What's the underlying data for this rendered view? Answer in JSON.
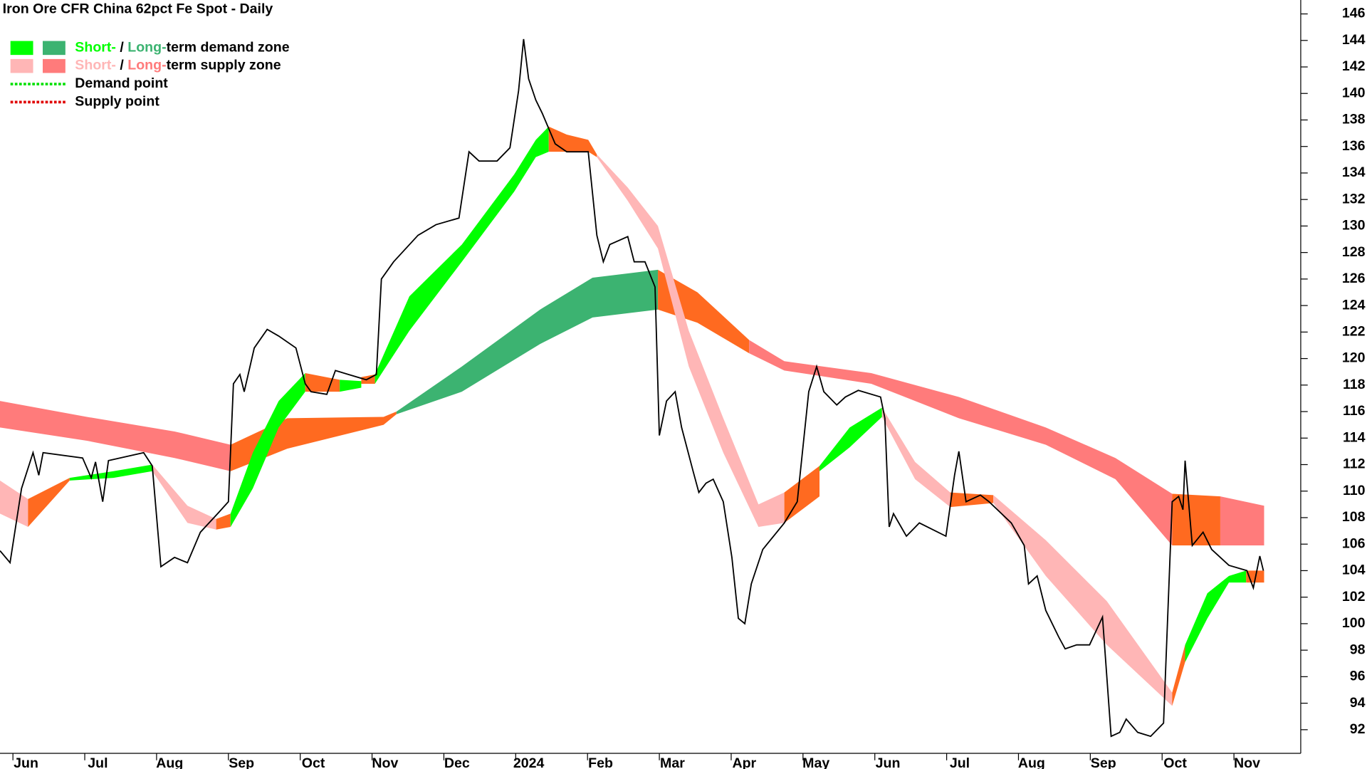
{
  "chart_data": {
    "type": "line",
    "title": "Iron Ore CFR China 62pct Fe Spot - Daily",
    "color": "#000000",
    "xlim": [
      -0.18,
      17.93
    ],
    "ylim": [
      90.22,
      147.05
    ],
    "xticks": [
      {
        "value": 0,
        "label": "Jun"
      },
      {
        "value": 1,
        "label": "Jul"
      },
      {
        "value": 2,
        "label": "Aug"
      },
      {
        "value": 3,
        "label": "Sep"
      },
      {
        "value": 4,
        "label": "Oct"
      },
      {
        "value": 5,
        "label": "Nov"
      },
      {
        "value": 6,
        "label": "Dec"
      },
      {
        "value": 7,
        "label": "2024"
      },
      {
        "value": 8,
        "label": "Feb"
      },
      {
        "value": 9,
        "label": "Mar"
      },
      {
        "value": 10,
        "label": "Apr"
      },
      {
        "value": 11,
        "label": "May"
      },
      {
        "value": 12,
        "label": "Jun"
      },
      {
        "value": 13,
        "label": "Jul"
      },
      {
        "value": 14,
        "label": "Aug"
      },
      {
        "value": 15,
        "label": "Sep"
      },
      {
        "value": 16,
        "label": "Oct"
      },
      {
        "value": 17,
        "label": "Nov"
      }
    ],
    "yticks": [
      92,
      94,
      96,
      98,
      100,
      102,
      104,
      106,
      108,
      110,
      112,
      114,
      116,
      118,
      120,
      122,
      124,
      126,
      128,
      130,
      132,
      134,
      136,
      138,
      140,
      142,
      144,
      146
    ],
    "x": [
      -0.18,
      -0.04,
      0.12,
      0.28,
      0.36,
      0.42,
      0.97,
      1.09,
      1.15,
      1.25,
      1.33,
      1.82,
      1.94,
      2.06,
      2.25,
      2.43,
      2.61,
      2.85,
      3.0,
      3.07,
      3.16,
      3.22,
      3.36,
      3.54,
      3.7,
      3.94,
      4.07,
      4.15,
      4.37,
      4.49,
      4.67,
      4.92,
      5.06,
      5.13,
      5.3,
      5.64,
      5.89,
      6.21,
      6.35,
      6.49,
      6.74,
      6.92,
      7.04,
      7.11,
      7.18,
      7.28,
      7.37,
      7.55,
      7.71,
      8.01,
      8.13,
      8.22,
      8.31,
      8.56,
      8.65,
      8.8,
      8.94,
      9.0,
      9.1,
      9.22,
      9.31,
      9.47,
      9.55,
      9.65,
      9.75,
      9.89,
      10.01,
      10.1,
      10.19,
      10.28,
      10.44,
      10.74,
      10.92,
      11.08,
      11.19,
      11.29,
      11.47,
      11.59,
      11.77,
      12.08,
      12.14,
      12.2,
      12.26,
      12.44,
      12.62,
      12.99,
      13.11,
      13.17,
      13.27,
      13.47,
      13.59,
      13.9,
      14.08,
      14.14,
      14.26,
      14.38,
      14.56,
      14.65,
      14.81,
      14.99,
      15.17,
      15.29,
      15.41,
      15.5,
      15.66,
      15.84,
      16.02,
      16.14,
      16.23,
      16.29,
      16.32,
      16.42,
      16.57,
      16.69,
      16.93,
      17.18,
      17.27,
      17.36,
      17.41
    ],
    "values": [
      105.5,
      104.6,
      110.2,
      112.9,
      111.2,
      112.9,
      112.5,
      111.0,
      112.2,
      109.2,
      112.3,
      112.9,
      111.9,
      104.3,
      105.0,
      104.6,
      106.9,
      108.3,
      109.2,
      118.1,
      118.8,
      117.5,
      120.8,
      122.2,
      121.7,
      120.8,
      118.1,
      117.5,
      117.3,
      119.1,
      118.8,
      118.4,
      118.8,
      126.0,
      127.3,
      129.3,
      130.1,
      130.6,
      135.6,
      134.9,
      134.9,
      135.9,
      140.2,
      144.1,
      141.1,
      139.5,
      138.5,
      136.2,
      135.6,
      135.6,
      129.3,
      127.3,
      128.6,
      129.2,
      127.3,
      127.3,
      125.4,
      114.2,
      116.8,
      117.5,
      114.8,
      111.5,
      109.9,
      110.6,
      110.9,
      109.2,
      105.0,
      100.4,
      100.0,
      103.0,
      105.6,
      107.6,
      109.2,
      117.5,
      119.4,
      117.5,
      116.5,
      117.1,
      117.6,
      117.1,
      115.5,
      107.3,
      108.3,
      106.6,
      107.6,
      106.6,
      111.2,
      113.0,
      109.2,
      109.7,
      109.2,
      107.6,
      105.9,
      103.0,
      103.6,
      101.0,
      99.0,
      98.1,
      98.4,
      98.4,
      100.5,
      91.5,
      91.8,
      92.8,
      91.8,
      91.5,
      92.5,
      109.2,
      109.6,
      108.6,
      112.3,
      105.9,
      106.9,
      105.6,
      104.4,
      104.0,
      102.7,
      105.1,
      104.0
    ],
    "zones": {
      "short": [
        {
          "color": "#ffb6b6",
          "x": [
            -0.18,
            0.21
          ],
          "upper": [
            110.8,
            109.4
          ],
          "lower": [
            108.3,
            107.3
          ]
        },
        {
          "color": "#ff6a20",
          "x": [
            0.21,
            0.79
          ],
          "upper": [
            109.4,
            111.0
          ],
          "lower": [
            107.3,
            110.8
          ]
        },
        {
          "color": "#00ff00",
          "x": [
            0.79,
            1.4,
            1.94
          ],
          "upper": [
            111.0,
            111.5,
            112.0
          ],
          "lower": [
            110.8,
            111.0,
            111.5
          ]
        },
        {
          "color": "#ffb6b6",
          "x": [
            1.94,
            2.43,
            2.83
          ],
          "upper": [
            112.0,
            108.9,
            107.9
          ],
          "lower": [
            111.5,
            107.6,
            107.1
          ]
        },
        {
          "color": "#ff6a20",
          "x": [
            2.83,
            3.03
          ],
          "upper": [
            107.9,
            108.3
          ],
          "lower": [
            107.1,
            107.3
          ]
        },
        {
          "color": "#00ff00",
          "x": [
            3.03,
            3.34,
            3.7,
            4.07
          ],
          "upper": [
            108.3,
            112.9,
            116.8,
            118.9
          ],
          "lower": [
            107.3,
            110.2,
            114.8,
            117.5
          ]
        },
        {
          "color": "#ff6a20",
          "x": [
            4.07,
            4.55
          ],
          "upper": [
            118.9,
            118.4
          ],
          "lower": [
            117.5,
            117.5
          ]
        },
        {
          "color": "#00ff00",
          "x": [
            4.55,
            4.85
          ],
          "upper": [
            118.4,
            118.3
          ],
          "lower": [
            117.5,
            117.8
          ]
        },
        {
          "color": "#ff6a20",
          "x": [
            4.85,
            5.04
          ],
          "upper": [
            118.6,
            118.8
          ],
          "lower": [
            118.1,
            118.1
          ]
        },
        {
          "color": "#00ff00",
          "x": [
            5.04,
            5.52,
            6.25,
            6.98,
            7.28,
            7.46
          ],
          "upper": [
            118.8,
            124.7,
            128.6,
            133.9,
            136.5,
            137.5
          ],
          "lower": [
            118.1,
            122.1,
            127.3,
            132.6,
            135.2,
            135.6
          ]
        },
        {
          "color": "#ff6a20",
          "x": [
            7.46,
            7.71,
            8.01,
            8.13
          ],
          "upper": [
            137.5,
            136.9,
            136.5,
            135.4
          ],
          "lower": [
            135.6,
            135.6,
            135.6,
            135.2
          ]
        },
        {
          "color": "#ffb6b6",
          "x": [
            8.13,
            8.56,
            8.98,
            9.41,
            9.89,
            10.38,
            10.74
          ],
          "upper": [
            135.4,
            132.9,
            130.0,
            122.1,
            115.5,
            109.0,
            109.9
          ],
          "lower": [
            135.2,
            131.9,
            128.3,
            119.4,
            112.9,
            107.3,
            107.6
          ]
        },
        {
          "color": "#ff6a20",
          "x": [
            10.74,
            11.23
          ],
          "upper": [
            109.9,
            111.9
          ],
          "lower": [
            107.6,
            109.6
          ]
        },
        {
          "color": "#00ff00",
          "x": [
            11.23,
            11.65,
            12.1
          ],
          "upper": [
            111.9,
            114.8,
            116.3
          ],
          "lower": [
            111.5,
            113.3,
            115.6
          ]
        },
        {
          "color": "#ffb6b6",
          "x": [
            12.1,
            12.56,
            13.05
          ],
          "upper": [
            116.3,
            112.2,
            109.9
          ],
          "lower": [
            115.6,
            110.9,
            108.8
          ]
        },
        {
          "color": "#ff6a20",
          "x": [
            13.05,
            13.65
          ],
          "upper": [
            109.9,
            109.7
          ],
          "lower": [
            108.8,
            109.1
          ]
        },
        {
          "color": "#ffb6b6",
          "x": [
            13.65,
            14.38,
            15.23,
            16.14
          ],
          "upper": [
            109.7,
            106.3,
            101.7,
            94.8
          ],
          "lower": [
            109.1,
            103.6,
            98.4,
            93.8
          ]
        },
        {
          "color": "#ff6a20",
          "x": [
            16.14,
            16.32
          ],
          "upper": [
            94.8,
            98.4
          ],
          "lower": [
            93.8,
            97.1
          ]
        },
        {
          "color": "#00ff00",
          "x": [
            16.32,
            16.63,
            16.93,
            17.17
          ],
          "upper": [
            98.4,
            102.3,
            103.6,
            104.0
          ],
          "lower": [
            97.1,
            100.4,
            103.1,
            103.1
          ]
        },
        {
          "color": "#ff6a20",
          "x": [
            17.17,
            17.42
          ],
          "upper": [
            104.0,
            104.0
          ],
          "lower": [
            103.1,
            103.1
          ]
        }
      ],
      "long": [
        {
          "color": "#ff7b7b",
          "x": [
            -0.18,
            1.03,
            2.25,
            3.03
          ],
          "upper": [
            116.8,
            115.6,
            114.5,
            113.5
          ],
          "lower": [
            114.8,
            113.8,
            112.5,
            111.5
          ]
        },
        {
          "color": "#ff6a20",
          "x": [
            3.03,
            3.82,
            5.16,
            5.34
          ],
          "upper": [
            113.5,
            115.5,
            115.6,
            116.0
          ],
          "lower": [
            111.5,
            113.2,
            115.0,
            115.8
          ]
        },
        {
          "color": "#3cb371",
          "x": [
            5.34,
            6.25,
            7.34,
            8.07,
            8.98
          ],
          "upper": [
            116.0,
            119.4,
            123.7,
            126.1,
            126.7
          ],
          "lower": [
            115.8,
            117.5,
            121.1,
            123.1,
            123.7
          ]
        },
        {
          "color": "#ff6a20",
          "x": [
            8.98,
            9.53,
            10.25
          ],
          "upper": [
            126.7,
            125.0,
            121.4
          ],
          "lower": [
            123.7,
            122.7,
            120.4
          ]
        },
        {
          "color": "#ff7b7b",
          "x": [
            10.25,
            10.74,
            11.95,
            13.17,
            14.38,
            15.35,
            16.14
          ],
          "upper": [
            121.4,
            119.8,
            118.9,
            117.1,
            114.8,
            112.5,
            109.8
          ],
          "lower": [
            120.4,
            119.1,
            118.1,
            115.5,
            113.5,
            110.9,
            105.9
          ]
        },
        {
          "color": "#ff6a20",
          "x": [
            16.14,
            16.81
          ],
          "upper": [
            109.8,
            109.6
          ],
          "lower": [
            105.9,
            105.9
          ]
        },
        {
          "color": "#ff7b7b",
          "x": [
            16.81,
            17.42
          ],
          "upper": [
            109.6,
            108.9
          ],
          "lower": [
            105.9,
            105.9
          ]
        }
      ]
    },
    "legend": [
      {
        "swatches": [
          "#00ff00",
          "#3cb371"
        ],
        "parts": [
          {
            "text": "Short-",
            "color": "#00ff00"
          },
          {
            "text": " / ",
            "color": "#000000"
          },
          {
            "text": "Long-",
            "color": "#3cb371"
          },
          {
            "text": "term demand zone",
            "color": "#000000"
          }
        ]
      },
      {
        "swatches": [
          "#ffb6b6",
          "#ff7b7b"
        ],
        "parts": [
          {
            "text": "Short-",
            "color": "#ffb6b6"
          },
          {
            "text": " / ",
            "color": "#000000"
          },
          {
            "text": "Long-",
            "color": "#ff7b7b"
          },
          {
            "text": "term supply zone",
            "color": "#000000"
          }
        ]
      },
      {
        "line": "#00e000",
        "parts": [
          {
            "text": "Demand point",
            "color": "#000000"
          }
        ]
      },
      {
        "line": "#e00000",
        "parts": [
          {
            "text": "Supply point",
            "color": "#000000"
          }
        ]
      }
    ]
  }
}
